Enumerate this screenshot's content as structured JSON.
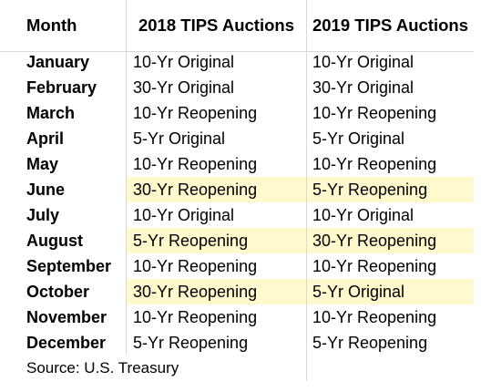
{
  "header": {
    "month": "Month",
    "col_2018": "2018 TIPS Auctions",
    "col_2019": "2019 TIPS Auctions"
  },
  "rows": [
    {
      "month": "January",
      "y2018": "10-Yr Original",
      "y2019": "10-Yr Original",
      "highlight": false
    },
    {
      "month": "February",
      "y2018": "30-Yr Original",
      "y2019": "30-Yr Original",
      "highlight": false
    },
    {
      "month": "March",
      "y2018": "10-Yr Reopening",
      "y2019": "10-Yr Reopening",
      "highlight": false
    },
    {
      "month": "April",
      "y2018": "5-Yr Original",
      "y2019": "5-Yr Original",
      "highlight": false
    },
    {
      "month": "May",
      "y2018": "10-Yr Reopening",
      "y2019": "10-Yr Reopening",
      "highlight": false
    },
    {
      "month": "June",
      "y2018": "30-Yr Reopening",
      "y2019": "5-Yr Reopening",
      "highlight": true
    },
    {
      "month": "July",
      "y2018": "10-Yr Original",
      "y2019": "10-Yr Original",
      "highlight": false
    },
    {
      "month": "August",
      "y2018": "5-Yr Reopening",
      "y2019": "30-Yr Reopening",
      "highlight": true
    },
    {
      "month": "September",
      "y2018": "10-Yr Reopening",
      "y2019": "10-Yr Reopening",
      "highlight": false
    },
    {
      "month": "October",
      "y2018": "30-Yr Reopening",
      "y2019": "5-Yr Original",
      "highlight": true
    },
    {
      "month": "November",
      "y2018": "10-Yr Reopening",
      "y2019": "10-Yr Reopening",
      "highlight": false
    },
    {
      "month": "December",
      "y2018": "5-Yr Reopening",
      "y2019": "5-Yr Reopening",
      "highlight": false
    }
  ],
  "source": "Source: U.S. Treasury",
  "colors": {
    "highlight": "#fefacd",
    "gridline": "#d9d9d9"
  }
}
